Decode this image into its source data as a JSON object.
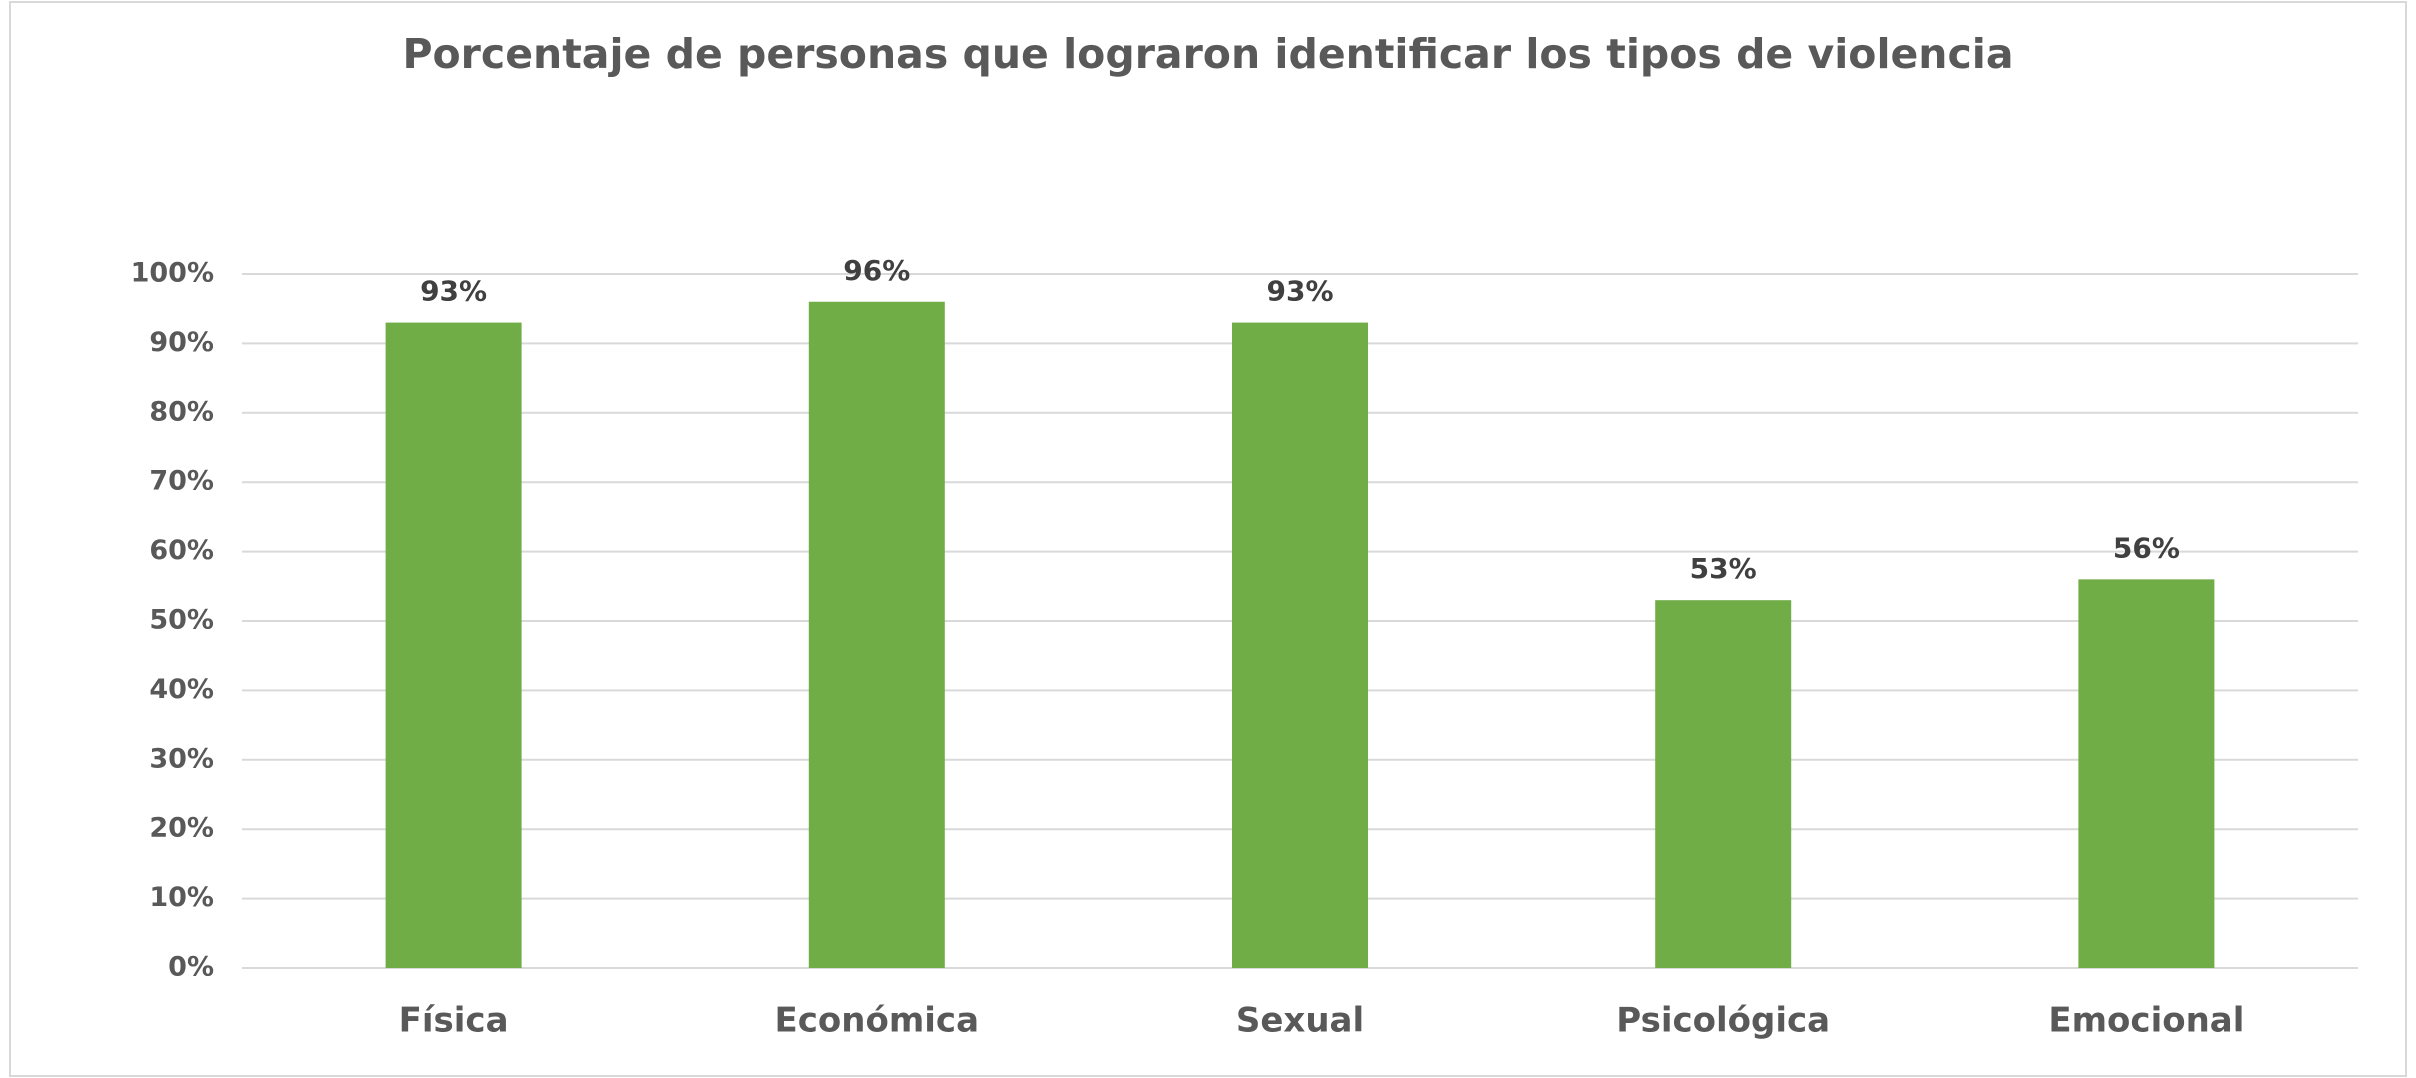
{
  "chart_data": {
    "type": "bar",
    "title": "Porcentaje de personas que lograron identificar los tipos de violencia",
    "categories": [
      "Física",
      "Económica",
      "Sexual",
      "Psicológica",
      "Emocional"
    ],
    "values": [
      93,
      96,
      93,
      53,
      56
    ],
    "value_labels": [
      "93%",
      "96%",
      "93%",
      "53%",
      "56%"
    ],
    "color": "#70ad47",
    "ylim": [
      0,
      100
    ],
    "yticks": [
      {
        "value": 0,
        "label": "0%"
      },
      {
        "value": 10,
        "label": "10%"
      },
      {
        "value": 20,
        "label": "20%"
      },
      {
        "value": 30,
        "label": "30%"
      },
      {
        "value": 40,
        "label": "40%"
      },
      {
        "value": 50,
        "label": "50%"
      },
      {
        "value": 60,
        "label": "60%"
      },
      {
        "value": 70,
        "label": "70%"
      },
      {
        "value": 80,
        "label": "80%"
      },
      {
        "value": 90,
        "label": "90%"
      },
      {
        "value": 100,
        "label": "100%"
      }
    ],
    "grid": true
  }
}
